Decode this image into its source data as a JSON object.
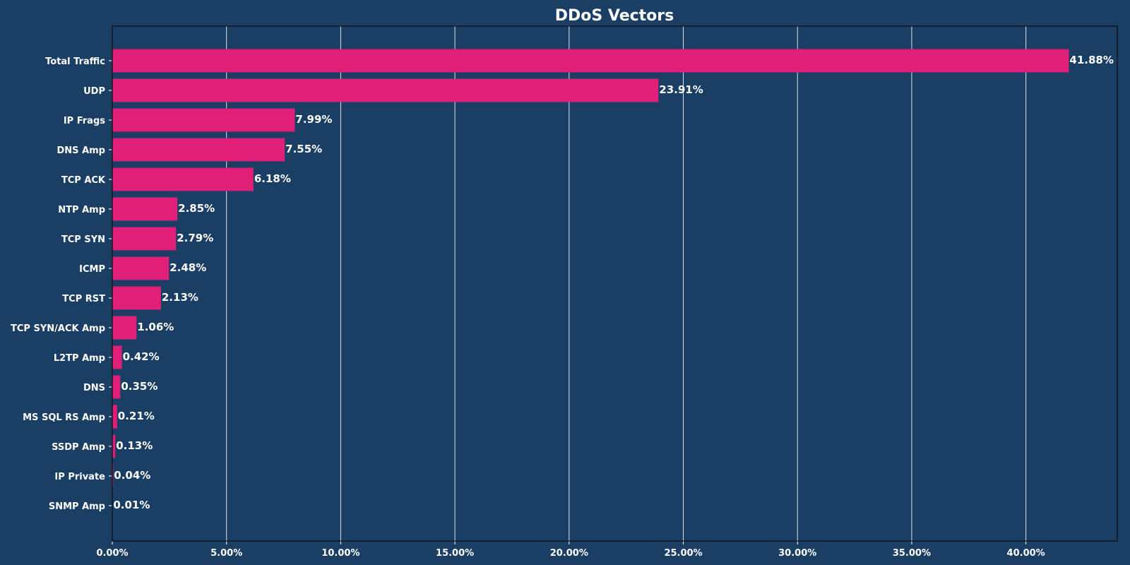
{
  "chart_data": {
    "type": "bar",
    "orientation": "horizontal",
    "title": "DDoS Vectors",
    "xlabel": "",
    "ylabel": "",
    "xlim": [
      0,
      44
    ],
    "x_ticks": [
      0,
      5,
      10,
      15,
      20,
      25,
      30,
      35,
      40
    ],
    "x_tick_labels": [
      "0.00%",
      "5.00%",
      "10.00%",
      "15.00%",
      "20.00%",
      "25.00%",
      "30.00%",
      "35.00%",
      "40.00%"
    ],
    "grid": "vertical",
    "categories": [
      "Total Traffic",
      "UDP",
      "IP Frags",
      "DNS Amp",
      "TCP ACK",
      "NTP Amp",
      "TCP SYN",
      "ICMP",
      "TCP RST",
      "TCP SYN/ACK Amp",
      "L2TP Amp",
      "DNS",
      "MS SQL RS Amp",
      "SSDP Amp",
      "IP Private",
      "SNMP Amp"
    ],
    "values": [
      41.88,
      23.91,
      7.99,
      7.55,
      6.18,
      2.85,
      2.79,
      2.48,
      2.13,
      1.06,
      0.42,
      0.35,
      0.21,
      0.13,
      0.04,
      0.01
    ],
    "value_labels": [
      "41.88%",
      "23.91%",
      "7.99%",
      "7.55%",
      "6.18%",
      "2.85%",
      "2.79%",
      "2.48%",
      "2.13%",
      "1.06%",
      "0.42%",
      "0.35%",
      "0.21%",
      "0.13%",
      "0.04%",
      "0.01%"
    ]
  },
  "colors": {
    "background": "#1b3f64",
    "bar": "#e01f79",
    "grid": "#ffffff",
    "text": "#ffffff",
    "axis": "#0b0b0b"
  }
}
